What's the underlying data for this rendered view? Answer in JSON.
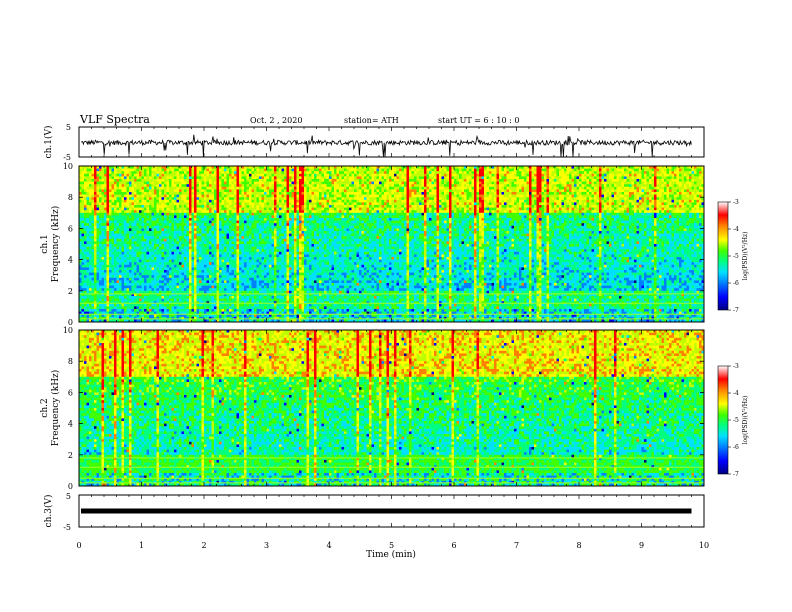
{
  "header": {
    "title": "VLF Spectra",
    "date": "Oct. 2 , 2020",
    "station": "station= ATH",
    "start": "start  UT  =   6  : 10 : 0"
  },
  "chart_data": [
    {
      "type": "line",
      "panel": "ch1-waveform",
      "ylabel": "ch.1(V)",
      "ylim": [
        -5,
        5
      ],
      "yticks": [
        "5",
        "-5"
      ],
      "x_range_min": [
        0,
        9.8
      ],
      "baseline": 0,
      "color": "#000000"
    },
    {
      "type": "heatmap",
      "panel": "ch1-spectrogram",
      "ylabel_top": "ch.1",
      "ylabel": "Frequency (kHz)",
      "ylim": [
        0,
        10
      ],
      "yticks": [
        "0",
        "2",
        "4",
        "6",
        "8",
        "10"
      ],
      "colorbar": {
        "label": "log(PSD)(V²/Hz)",
        "range": [
          -7,
          -3
        ],
        "ticks": [
          "-3",
          "-4",
          "-5",
          "-6",
          "-7"
        ]
      }
    },
    {
      "type": "heatmap",
      "panel": "ch2-spectrogram",
      "ylabel_top": "ch.2",
      "ylabel": "Frequency (kHz)",
      "ylim": [
        0,
        10
      ],
      "yticks": [
        "0",
        "2",
        "4",
        "6",
        "8",
        "10"
      ],
      "colorbar": {
        "label": "log(PSD)(V²/Hz)",
        "range": [
          -7,
          -3
        ],
        "ticks": [
          "-3",
          "-4",
          "-5",
          "-6",
          "-7"
        ]
      }
    },
    {
      "type": "line",
      "panel": "ch3-waveform",
      "ylabel": "ch.3(V)",
      "ylim": [
        -5,
        5
      ],
      "yticks": [
        "5",
        "-5"
      ],
      "value": 0,
      "color": "#000000"
    }
  ],
  "x_axis": {
    "label": "Time  (min)",
    "range": [
      0,
      10
    ],
    "ticks": [
      "0",
      "1",
      "2",
      "3",
      "4",
      "5",
      "6",
      "7",
      "8",
      "9",
      "10"
    ]
  },
  "colormap": [
    "#000080",
    "#0000ff",
    "#0080ff",
    "#00e0ff",
    "#00ff80",
    "#40ff00",
    "#c0ff00",
    "#ffff00",
    "#ff8000",
    "#ff0000",
    "#ffffff"
  ]
}
